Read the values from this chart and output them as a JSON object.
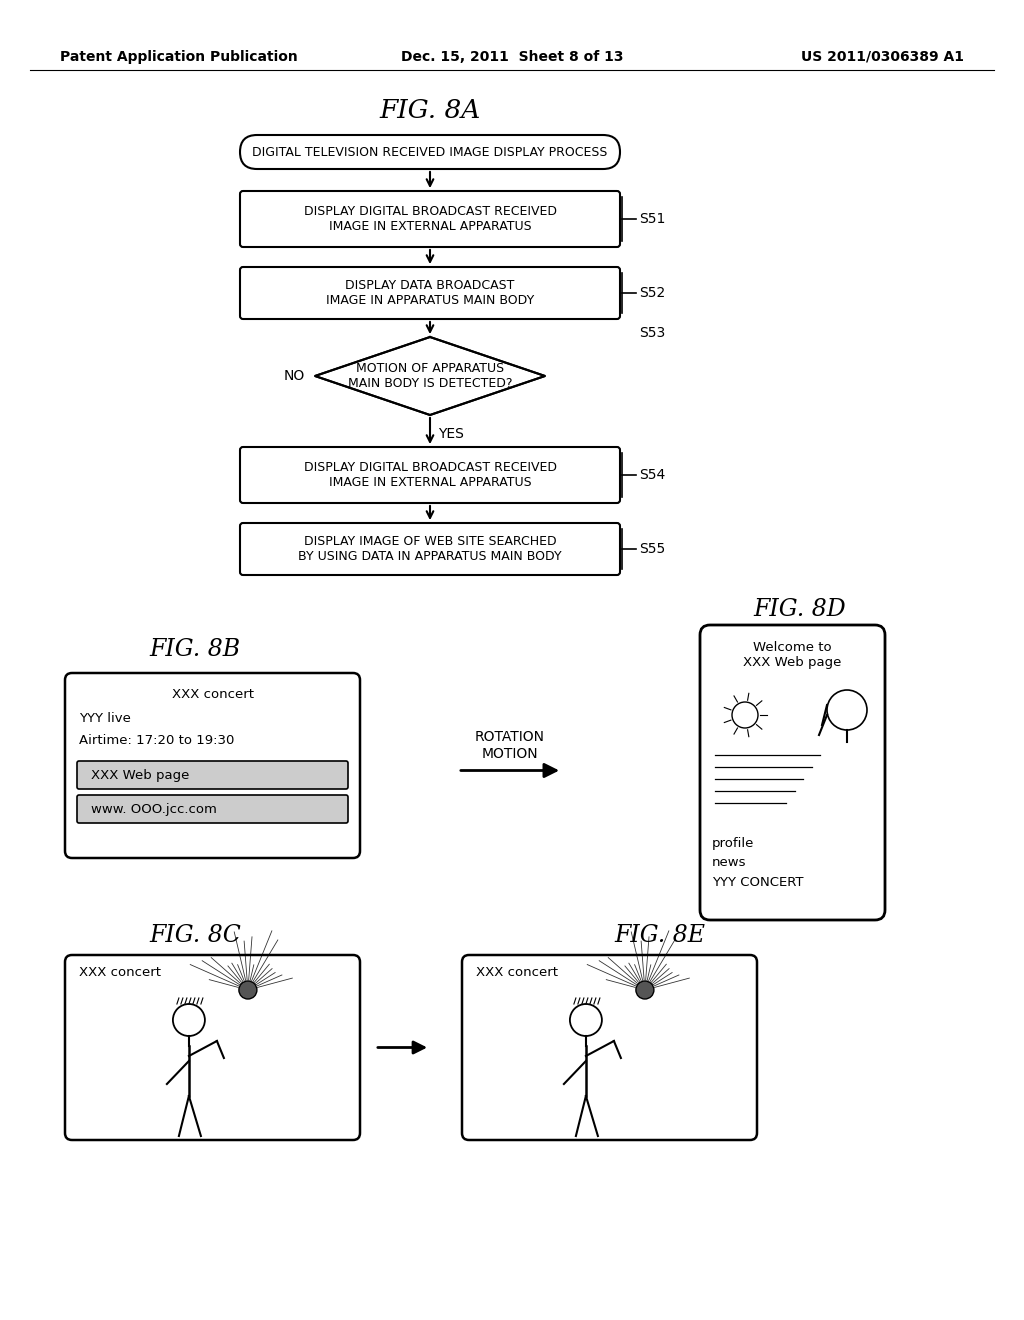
{
  "bg_color": "#ffffff",
  "header_left": "Patent Application Publication",
  "header_center": "Dec. 15, 2011  Sheet 8 of 13",
  "header_right": "US 2011/0306389 A1",
  "fig8a_title": "FIG. 8A",
  "fig8b_title": "FIG. 8B",
  "fig8c_title": "FIG. 8C",
  "fig8d_title": "FIG. 8D",
  "fig8e_title": "FIG. 8E",
  "flowchart_start_label": "DIGITAL TELEVISION RECEIVED IMAGE DISPLAY PROCESS",
  "box_s51": "DISPLAY DIGITAL BROADCAST RECEIVED\nIMAGE IN EXTERNAL APPARATUS",
  "label_s51": "S51",
  "box_s52": "DISPLAY DATA BROADCAST\nIMAGE IN APPARATUS MAIN BODY",
  "label_s52": "S52",
  "diamond_s53": "MOTION OF APPARATUS\nMAIN BODY IS DETECTED?",
  "label_s53": "S53",
  "label_no": "NO",
  "label_yes": "YES",
  "box_s54": "DISPLAY DIGITAL BROADCAST RECEIVED\nIMAGE IN EXTERNAL APPARATUS",
  "label_s54": "S54",
  "box_s55": "DISPLAY IMAGE OF WEB SITE SEARCHED\nBY USING DATA IN APPARATUS MAIN BODY",
  "label_s55": "S55",
  "rotation_label": "ROTATION\nMOTION",
  "fig8b_line1": "XXX concert",
  "fig8b_line2": "YYY live",
  "fig8b_line3": "Airtime: 17:20 to 19:30",
  "fig8b_box1": "XXX Web page",
  "fig8b_box2": "www. OOO.jcc.com",
  "fig8d_line1": "Welcome to\nXXX Web page",
  "fig8d_bottom1": "profile",
  "fig8d_bottom2": "news",
  "fig8d_bottom3": "YYY CONCERT",
  "fig8c_label": "XXX concert",
  "fig8e_label": "XXX concert"
}
